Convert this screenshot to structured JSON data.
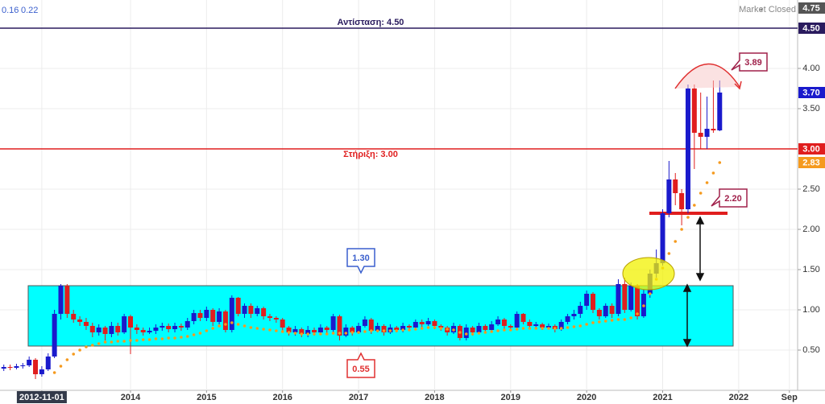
{
  "chart_data": {
    "type": "candlestick",
    "header_values": [
      0.16,
      0.22
    ],
    "status": "Market Closed",
    "up_color": "#1a1acc",
    "down_color": "#e01e1e",
    "grid": true,
    "xlim": [
      -0.6,
      125.3
    ],
    "ylim": [
      0,
      4.85
    ],
    "yticks": [
      {
        "value": 0.5,
        "label": "0.50"
      },
      {
        "value": 1,
        "label": "1.00"
      },
      {
        "value": 1.5,
        "label": "1.50"
      },
      {
        "value": 2,
        "label": "2.00"
      },
      {
        "value": 2.5,
        "label": "2.50"
      },
      {
        "value": 3.5,
        "label": "3.50"
      },
      {
        "value": 4,
        "label": "4.00"
      }
    ],
    "xticks": [
      {
        "value": 6,
        "label": "2012-11-01"
      },
      {
        "value": 20,
        "label": "2014"
      },
      {
        "value": 32,
        "label": "2015"
      },
      {
        "value": 44,
        "label": "2016"
      },
      {
        "value": 56,
        "label": "2017"
      },
      {
        "value": 68,
        "label": "2018"
      },
      {
        "value": 80,
        "label": "2019"
      },
      {
        "value": 92,
        "label": "2020"
      },
      {
        "value": 104,
        "label": "2021"
      },
      {
        "value": 116,
        "label": "2022"
      },
      {
        "value": 124,
        "label": "Sep"
      }
    ],
    "open": [
      0.27,
      0.29,
      0.28,
      0.3,
      0.31,
      0.38,
      0.2,
      0.26,
      0.42,
      0.95,
      1.3,
      0.95,
      0.88,
      0.85,
      0.8,
      0.72,
      0.78,
      0.7,
      0.8,
      0.72,
      0.92,
      0.78,
      0.75,
      0.72,
      0.74,
      0.78,
      0.8,
      0.76,
      0.8,
      0.78,
      0.86,
      0.96,
      0.9,
      1.0,
      0.85,
      0.98,
      0.75,
      1.15,
      0.95,
      1.05,
      0.95,
      1.02,
      0.92,
      0.9,
      0.88,
      0.78,
      0.72,
      0.76,
      0.7,
      0.75,
      0.72,
      0.78,
      0.75,
      0.92,
      0.68,
      0.78,
      0.72,
      0.8,
      0.88,
      0.74,
      0.8,
      0.72,
      0.78,
      0.75,
      0.8,
      0.78,
      0.85,
      0.82,
      0.86,
      0.8,
      0.78,
      0.72,
      0.8,
      0.65,
      0.78,
      0.72,
      0.8,
      0.75,
      0.82,
      0.88,
      0.8,
      0.78,
      0.95,
      0.85,
      0.8,
      0.82,
      0.78,
      0.8,
      0.76,
      0.85,
      0.92,
      0.95,
      1.05,
      1.2,
      1.0,
      0.92,
      1.05,
      0.95,
      1.32,
      1.0,
      1.3,
      0.92,
      1.2,
      1.45,
      1.58,
      2.2,
      2.62,
      2.45,
      2.25,
      3.75,
      3.2,
      3.15,
      3.25,
      3.23
    ],
    "high": [
      0.32,
      0.32,
      0.33,
      0.34,
      0.42,
      0.4,
      0.3,
      0.46,
      1.0,
      1.32,
      1.32,
      1.0,
      0.92,
      0.9,
      0.84,
      0.82,
      0.8,
      0.85,
      0.84,
      0.95,
      0.94,
      0.82,
      0.78,
      0.78,
      0.82,
      0.84,
      0.83,
      0.84,
      0.83,
      0.9,
      1.0,
      1.0,
      1.04,
      1.02,
      1.02,
      1.0,
      1.18,
      1.16,
      1.08,
      1.08,
      1.05,
      1.04,
      0.95,
      0.92,
      0.9,
      0.8,
      0.8,
      0.78,
      0.8,
      0.78,
      0.82,
      0.8,
      0.95,
      0.94,
      0.82,
      0.8,
      0.84,
      0.92,
      0.9,
      0.84,
      0.82,
      0.82,
      0.8,
      0.84,
      0.82,
      0.88,
      0.88,
      0.9,
      0.88,
      0.82,
      0.8,
      0.84,
      0.82,
      0.82,
      0.8,
      0.84,
      0.82,
      0.86,
      0.92,
      0.9,
      0.82,
      0.98,
      0.96,
      0.88,
      0.85,
      0.84,
      0.83,
      0.82,
      0.88,
      0.95,
      1.0,
      1.1,
      1.24,
      1.22,
      1.02,
      1.08,
      1.08,
      1.38,
      1.4,
      1.34,
      1.32,
      1.25,
      1.5,
      1.75,
      2.25,
      2.85,
      2.7,
      2.5,
      3.8,
      3.8,
      3.7,
      3.65,
      3.85,
      3.85
    ],
    "low": [
      0.24,
      0.25,
      0.26,
      0.27,
      0.29,
      0.14,
      0.17,
      0.24,
      0.4,
      0.88,
      0.9,
      0.84,
      0.8,
      0.75,
      0.66,
      0.68,
      0.62,
      0.66,
      0.68,
      0.7,
      0.45,
      0.7,
      0.68,
      0.7,
      0.7,
      0.74,
      0.72,
      0.72,
      0.74,
      0.75,
      0.82,
      0.86,
      0.86,
      0.8,
      0.82,
      0.72,
      0.72,
      0.92,
      0.9,
      0.9,
      0.92,
      0.88,
      0.86,
      0.84,
      0.74,
      0.68,
      0.68,
      0.66,
      0.66,
      0.68,
      0.7,
      0.7,
      0.72,
      0.62,
      0.66,
      0.68,
      0.7,
      0.78,
      0.7,
      0.72,
      0.68,
      0.7,
      0.72,
      0.72,
      0.74,
      0.76,
      0.78,
      0.8,
      0.76,
      0.74,
      0.68,
      0.7,
      0.62,
      0.62,
      0.68,
      0.7,
      0.72,
      0.72,
      0.8,
      0.76,
      0.74,
      0.76,
      0.82,
      0.76,
      0.78,
      0.75,
      0.76,
      0.72,
      0.74,
      0.82,
      0.88,
      0.9,
      1.0,
      0.96,
      0.88,
      0.9,
      0.9,
      0.92,
      0.96,
      0.98,
      0.88,
      0.9,
      1.15,
      1.4,
      1.55,
      2.15,
      2.3,
      2.05,
      2.2,
      2.75,
      3.0,
      3.0,
      3.2,
      3.22
    ],
    "close": [
      0.29,
      0.28,
      0.3,
      0.31,
      0.38,
      0.2,
      0.26,
      0.42,
      0.95,
      1.3,
      0.95,
      0.88,
      0.85,
      0.8,
      0.72,
      0.78,
      0.7,
      0.8,
      0.72,
      0.92,
      0.78,
      0.75,
      0.72,
      0.74,
      0.78,
      0.8,
      0.76,
      0.8,
      0.78,
      0.86,
      0.96,
      0.9,
      1.0,
      0.85,
      0.98,
      0.75,
      1.15,
      0.95,
      1.05,
      0.95,
      1.02,
      0.92,
      0.9,
      0.88,
      0.78,
      0.72,
      0.76,
      0.7,
      0.75,
      0.72,
      0.78,
      0.75,
      0.92,
      0.68,
      0.78,
      0.72,
      0.8,
      0.88,
      0.74,
      0.8,
      0.72,
      0.78,
      0.75,
      0.8,
      0.78,
      0.85,
      0.82,
      0.86,
      0.8,
      0.78,
      0.72,
      0.8,
      0.65,
      0.78,
      0.72,
      0.8,
      0.75,
      0.82,
      0.88,
      0.8,
      0.78,
      0.95,
      0.85,
      0.8,
      0.82,
      0.78,
      0.8,
      0.76,
      0.85,
      0.92,
      0.95,
      1.05,
      1.2,
      1.0,
      0.92,
      1.05,
      0.95,
      1.32,
      1.0,
      1.3,
      0.92,
      1.2,
      1.45,
      1.58,
      2.2,
      2.62,
      2.45,
      2.25,
      3.75,
      3.2,
      3.15,
      3.25,
      3.23,
      3.7
    ],
    "ma": {
      "color": "#f59a1e",
      "values": [
        null,
        null,
        null,
        null,
        null,
        null,
        null,
        null,
        0.22,
        0.3,
        0.38,
        0.45,
        0.5,
        0.54,
        0.56,
        0.58,
        0.6,
        0.6,
        0.61,
        0.61,
        0.62,
        0.62,
        0.63,
        0.63,
        0.64,
        0.64,
        0.65,
        0.65,
        0.66,
        0.67,
        0.69,
        0.71,
        0.74,
        0.77,
        0.8,
        0.82,
        0.84,
        0.82,
        0.8,
        0.78,
        0.77,
        0.76,
        0.75,
        0.74,
        0.73,
        0.72,
        0.71,
        0.7,
        0.7,
        0.7,
        0.7,
        0.7,
        0.71,
        0.71,
        0.71,
        0.72,
        0.72,
        0.73,
        0.74,
        0.74,
        0.74,
        0.74,
        0.74,
        0.75,
        0.75,
        0.76,
        0.77,
        0.78,
        0.78,
        0.77,
        0.76,
        0.75,
        0.72,
        0.7,
        0.7,
        0.71,
        0.72,
        0.73,
        0.74,
        0.75,
        0.75,
        0.76,
        0.77,
        0.77,
        0.77,
        0.77,
        0.77,
        0.77,
        0.77,
        0.78,
        0.79,
        0.8,
        0.82,
        0.84,
        0.85,
        0.86,
        0.87,
        0.88,
        0.88,
        0.9,
        0.95,
        1.05,
        1.2,
        1.38,
        1.52,
        1.7,
        1.85,
        2.0,
        2.15,
        2.3,
        2.45,
        2.58,
        2.7,
        2.83
      ]
    },
    "zone_color": "#00ffff",
    "callouts": [
      {
        "value": 1.3,
        "label": "1.30",
        "color": "#3a5fcd"
      },
      {
        "value": 0.55,
        "label": "0.55",
        "color": "#e03030"
      },
      {
        "value": 3.89,
        "label": "3.89",
        "color": "#a0204a"
      },
      {
        "value": 2.2,
        "label": "2.20",
        "color": "#a0204a"
      }
    ],
    "levels": [
      {
        "value": 4.5,
        "label": "Αντίσταση: 4.50",
        "color": "#2a1b5e"
      },
      {
        "value": 3,
        "label": "Στήριξη: 3.00",
        "color": "#e01e1e"
      }
    ],
    "price_badges": [
      {
        "value": 4.75,
        "label": "4.75",
        "color": "#555555"
      },
      {
        "value": 4.5,
        "label": "4.50",
        "color": "#2a1b5e"
      },
      {
        "value": 3.7,
        "label": "3.70",
        "color": "#1a1acc"
      },
      {
        "value": 3,
        "label": "3.00",
        "color": "#e01e1e"
      },
      {
        "value": 2.83,
        "label": "2.83",
        "color": "#f59a1e"
      }
    ]
  }
}
